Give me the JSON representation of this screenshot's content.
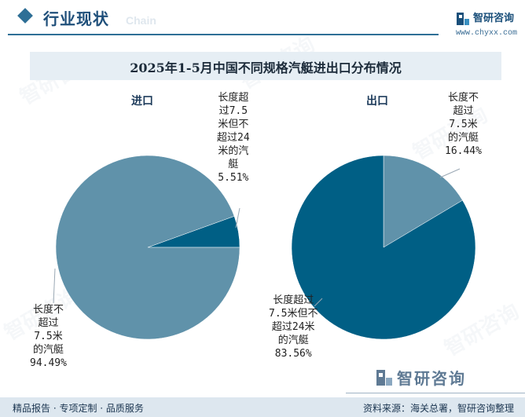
{
  "header": {
    "section_title": "行业现状",
    "section_subtitle": "Chain",
    "brand_name": "智研咨询",
    "brand_url": "www.chyxx.com"
  },
  "chart_data": [
    {
      "type": "pie",
      "title": "2025年1-5月中国不同规格汽艇进出口分布情况",
      "name": "进口",
      "slices": [
        {
          "label": "长度超\n过7.5\n米但不\n超过24\n米的汽\n艇",
          "value": 5.51,
          "value_label": "5.51%",
          "color": "#005f85"
        },
        {
          "label": "长度不\n超过\n7.5米\n的汽艇",
          "value": 94.49,
          "value_label": "94.49%",
          "color": "#6092aa"
        }
      ]
    },
    {
      "type": "pie",
      "title": "2025年1-5月中国不同规格汽艇进出口分布情况",
      "name": "出口",
      "slices": [
        {
          "label": "长度不\n超过\n7.5米\n的汽艇",
          "value": 16.44,
          "value_label": "16.44%",
          "color": "#6092aa"
        },
        {
          "label": "长度超过\n7.5米但不\n超过24米\n的汽艇",
          "value": 83.56,
          "value_label": "83.56%",
          "color": "#005f85"
        }
      ]
    }
  ],
  "footer": {
    "left": "精品报告 · 专项定制 · 品质服务",
    "right": "资料来源：海关总署，智研咨询整理",
    "source_brand": "智研咨询"
  }
}
